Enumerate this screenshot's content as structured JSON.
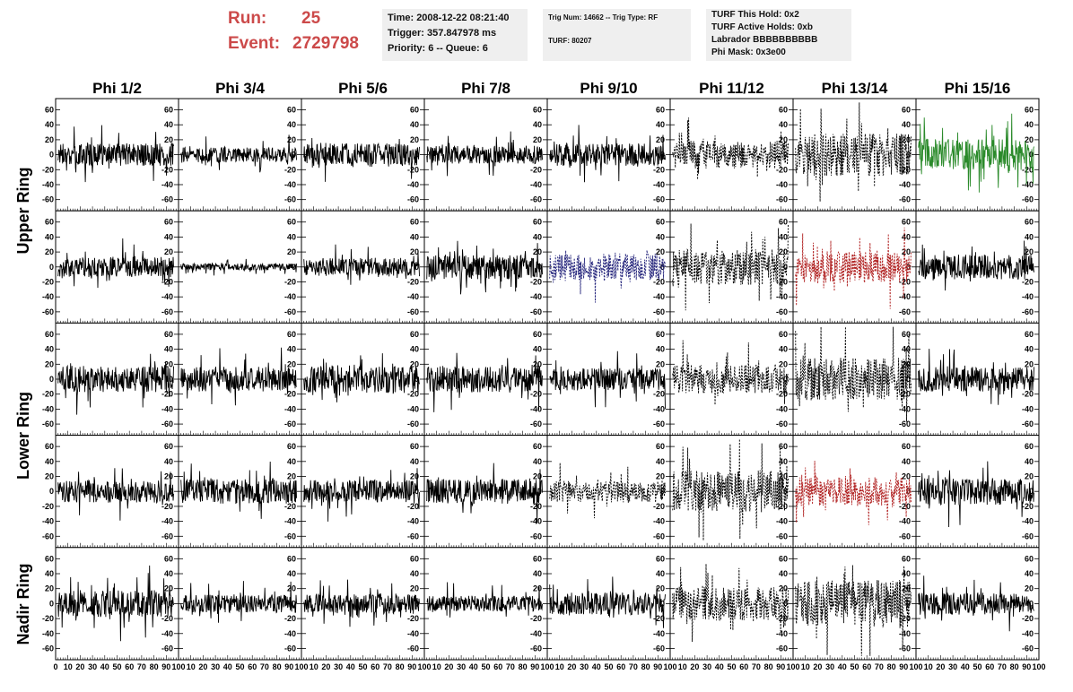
{
  "header": {
    "run_label": "Run:",
    "run_value": "25",
    "event_label": "Event:",
    "event_value": "2729798",
    "time": "Time: 2008-12-22 08:21:40",
    "trigger": "Trigger: 357.847978 ms",
    "priority": "Priority: 6 -- Queue: 6",
    "trig_num": "Trig Num: 14662 -- Trig Type: RF",
    "turf": "TURF: 80207",
    "turf_this_hold": "TURF This Hold: 0x2",
    "turf_active_holds": "TURF Active Holds: 0xb",
    "labrador": "Labrador BBBBBBBBBB",
    "phi_mask": "Phi Mask: 0x3e00"
  },
  "colors": {
    "run_text": "#cc4a4a",
    "info_bg": "#efefef",
    "trace_default": "#000000",
    "trace_green": "#2a8a2a",
    "trace_blue": "#22227a",
    "trace_red": "#b02020"
  },
  "chart_data": {
    "type": "line",
    "column_titles": [
      "Phi 1/2",
      "Phi 3/4",
      "Phi 5/6",
      "Phi 7/8",
      "Phi 9/10",
      "Phi 11/12",
      "Phi 13/14",
      "Phi 15/16"
    ],
    "row_titles": [
      "Upper Ring",
      "Lower Ring",
      "Nadir Ring"
    ],
    "xlim": [
      0,
      100
    ],
    "ylim": [
      -75,
      75
    ],
    "x_ticks": [
      0,
      10,
      20,
      30,
      40,
      50,
      60,
      70,
      80,
      90,
      100
    ],
    "x_tick_labels": [
      "0",
      "10",
      "20",
      "30",
      "40",
      "50",
      "60",
      "70",
      "80",
      "90",
      "100"
    ],
    "y_ticks": [
      -60,
      -40,
      -20,
      0,
      20,
      40,
      60
    ],
    "y_tick_labels": [
      "-60",
      "-40",
      "-20",
      "0",
      "20",
      "40",
      "60"
    ],
    "panels": [
      {
        "row": 0,
        "col": 0,
        "style": "solid",
        "color": "#000000",
        "amplitude": 20
      },
      {
        "row": 0,
        "col": 1,
        "style": "solid",
        "color": "#000000",
        "amplitude": 13
      },
      {
        "row": 0,
        "col": 2,
        "style": "solid",
        "color": "#000000",
        "amplitude": 20
      },
      {
        "row": 0,
        "col": 3,
        "style": "solid",
        "color": "#000000",
        "amplitude": 16
      },
      {
        "row": 0,
        "col": 4,
        "style": "solid",
        "color": "#000000",
        "amplitude": 20
      },
      {
        "row": 0,
        "col": 5,
        "style": "dashed",
        "color": "#000000",
        "amplitude": 25
      },
      {
        "row": 0,
        "col": 6,
        "style": "dashed",
        "color": "#000000",
        "amplitude": 38
      },
      {
        "row": 0,
        "col": 7,
        "style": "solid",
        "color": "#2a8a2a",
        "amplitude": 28
      },
      {
        "row": 1,
        "col": 0,
        "style": "solid",
        "color": "#000000",
        "amplitude": 18
      },
      {
        "row": 1,
        "col": 1,
        "style": "solid",
        "color": "#000000",
        "amplitude": 6
      },
      {
        "row": 1,
        "col": 2,
        "style": "solid",
        "color": "#000000",
        "amplitude": 16
      },
      {
        "row": 1,
        "col": 3,
        "style": "solid",
        "color": "#000000",
        "amplitude": 22
      },
      {
        "row": 1,
        "col": 4,
        "style": "dashed",
        "color": "#22227a",
        "amplitude": 24
      },
      {
        "row": 1,
        "col": 5,
        "style": "dashed",
        "color": "#000000",
        "amplitude": 32
      },
      {
        "row": 1,
        "col": 6,
        "style": "dashed",
        "color": "#b02020",
        "amplitude": 28
      },
      {
        "row": 1,
        "col": 7,
        "style": "solid",
        "color": "#000000",
        "amplitude": 22
      },
      {
        "row": 2,
        "col": 0,
        "style": "solid",
        "color": "#000000",
        "amplitude": 24
      },
      {
        "row": 2,
        "col": 1,
        "style": "solid",
        "color": "#000000",
        "amplitude": 22
      },
      {
        "row": 2,
        "col": 2,
        "style": "solid",
        "color": "#000000",
        "amplitude": 26
      },
      {
        "row": 2,
        "col": 3,
        "style": "solid",
        "color": "#000000",
        "amplitude": 24
      },
      {
        "row": 2,
        "col": 4,
        "style": "solid",
        "color": "#000000",
        "amplitude": 20
      },
      {
        "row": 2,
        "col": 5,
        "style": "dashed",
        "color": "#000000",
        "amplitude": 26
      },
      {
        "row": 2,
        "col": 6,
        "style": "dashed",
        "color": "#000000",
        "amplitude": 38
      },
      {
        "row": 2,
        "col": 7,
        "style": "solid",
        "color": "#000000",
        "amplitude": 22
      },
      {
        "row": 3,
        "col": 0,
        "style": "solid",
        "color": "#000000",
        "amplitude": 20
      },
      {
        "row": 3,
        "col": 1,
        "style": "solid",
        "color": "#000000",
        "amplitude": 22
      },
      {
        "row": 3,
        "col": 2,
        "style": "solid",
        "color": "#000000",
        "amplitude": 20
      },
      {
        "row": 3,
        "col": 3,
        "style": "solid",
        "color": "#000000",
        "amplitude": 22
      },
      {
        "row": 3,
        "col": 4,
        "style": "dashed",
        "color": "#000000",
        "amplitude": 20
      },
      {
        "row": 3,
        "col": 5,
        "style": "dashed",
        "color": "#000000",
        "amplitude": 38
      },
      {
        "row": 3,
        "col": 6,
        "style": "dashed",
        "color": "#b02020",
        "amplitude": 26
      },
      {
        "row": 3,
        "col": 7,
        "style": "solid",
        "color": "#000000",
        "amplitude": 24
      },
      {
        "row": 4,
        "col": 0,
        "style": "solid",
        "color": "#000000",
        "amplitude": 24
      },
      {
        "row": 4,
        "col": 1,
        "style": "solid",
        "color": "#000000",
        "amplitude": 16
      },
      {
        "row": 4,
        "col": 2,
        "style": "solid",
        "color": "#000000",
        "amplitude": 18
      },
      {
        "row": 4,
        "col": 3,
        "style": "solid",
        "color": "#000000",
        "amplitude": 14
      },
      {
        "row": 4,
        "col": 4,
        "style": "solid",
        "color": "#000000",
        "amplitude": 20
      },
      {
        "row": 4,
        "col": 5,
        "style": "dashed",
        "color": "#000000",
        "amplitude": 30
      },
      {
        "row": 4,
        "col": 6,
        "style": "dashed",
        "color": "#000000",
        "amplitude": 42
      },
      {
        "row": 4,
        "col": 7,
        "style": "solid",
        "color": "#000000",
        "amplitude": 20
      }
    ],
    "grid": false,
    "legend": "none"
  }
}
